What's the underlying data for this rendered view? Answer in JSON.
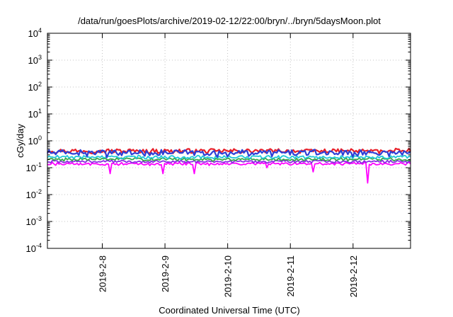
{
  "chart_data": {
    "type": "line",
    "title": "/data/run/goesPlots/archive/2019-02-12/22:00/bryn/../bryn/5daysMoon.plot",
    "xlabel": "Coordinated Universal Time (UTC)",
    "ylabel": "cGy/day",
    "yscale": "log",
    "ylim": [
      0.0001,
      10000
    ],
    "xlim": [
      "2019-02-07T03:00",
      "2019-02-12T22:00"
    ],
    "y_ticks": [
      {
        "base": "10",
        "exp": "-4"
      },
      {
        "base": "10",
        "exp": "-3"
      },
      {
        "base": "10",
        "exp": "-2"
      },
      {
        "base": "10",
        "exp": "-1"
      },
      {
        "base": "10",
        "exp": "0"
      },
      {
        "base": "10",
        "exp": "1"
      },
      {
        "base": "10",
        "exp": "2"
      },
      {
        "base": "10",
        "exp": "3"
      },
      {
        "base": "10",
        "exp": "4"
      }
    ],
    "x_ticks": [
      "2019-2-8",
      "2019-2-9",
      "2019-2-10",
      "2019-2-11",
      "2019-2-12"
    ],
    "grid": true,
    "legend": "none",
    "series": [
      {
        "color": "#e8202a",
        "base": 0.4,
        "spike_amp": 0.14,
        "dips": []
      },
      {
        "color": "#2e3fd6",
        "base": 0.34,
        "spike_amp": 0.16,
        "dips": [
          [
            "2019-02-08T01:30",
            0.24
          ],
          [
            "2019-02-09T20:00",
            0.25
          ]
        ]
      },
      {
        "color": "#20c8d8",
        "base": 0.24,
        "spike_amp": 0.06,
        "dips": []
      },
      {
        "color": "#3aa84a",
        "base": 0.2,
        "spike_amp": 0.05,
        "dips": []
      },
      {
        "color": "#8a2be2",
        "base": 0.165,
        "spike_amp": 0.035,
        "dips": []
      },
      {
        "color": "#ff00ff",
        "base": 0.135,
        "spike_amp": 0.03,
        "dips": [
          [
            "2019-02-08T03:00",
            0.06
          ],
          [
            "2019-02-08T23:00",
            0.06
          ],
          [
            "2019-02-09T11:00",
            0.06
          ],
          [
            "2019-02-10T15:00",
            0.1
          ],
          [
            "2019-02-11T09:00",
            0.07
          ],
          [
            "2019-02-12T05:30",
            0.027
          ]
        ]
      }
    ]
  }
}
